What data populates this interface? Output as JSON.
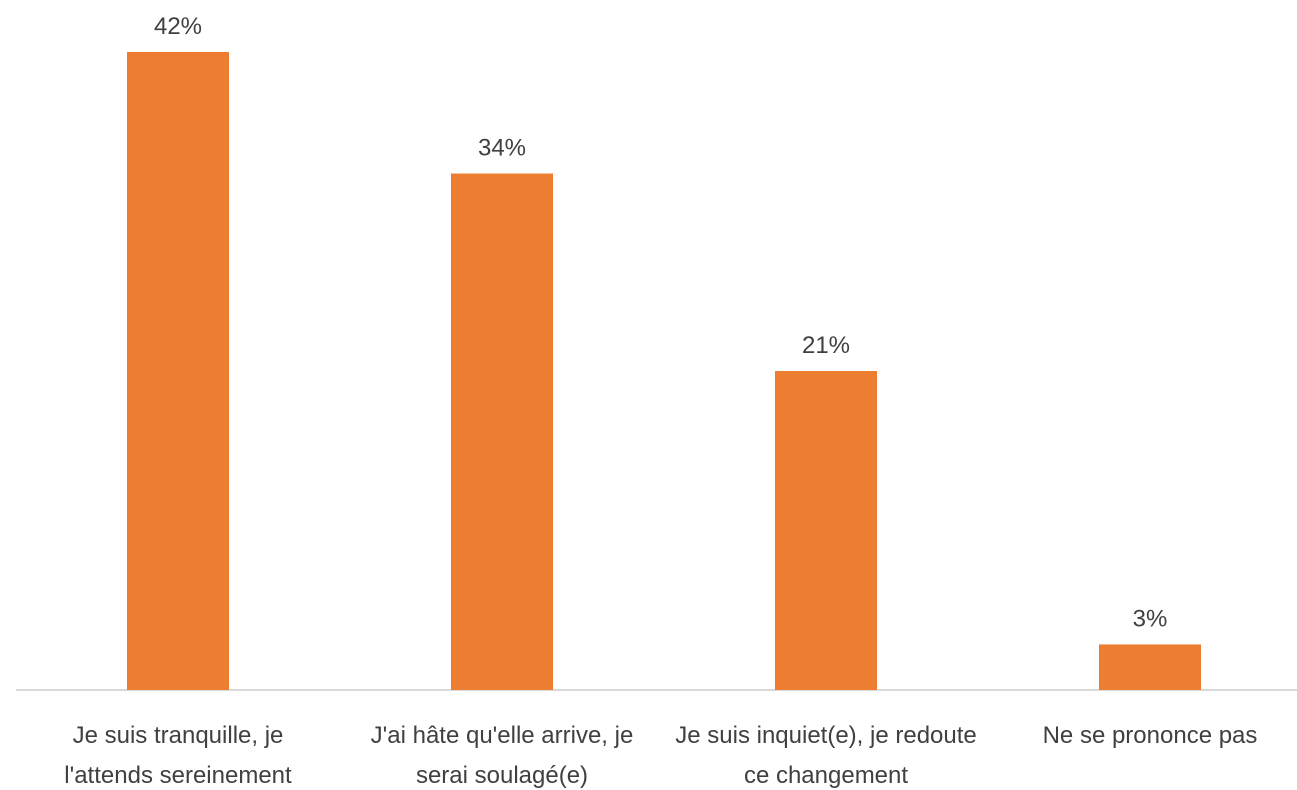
{
  "chart_data": {
    "type": "bar",
    "categories": [
      "Je suis tranquille, je l'attends sereinement",
      "J'ai hâte qu'elle arrive, je serai soulagé(e)",
      "Je suis inquiet(e), je redoute ce changement",
      "Ne se prononce pas"
    ],
    "values": [
      42,
      34,
      21,
      3
    ],
    "value_labels": [
      "42%",
      "34%",
      "21%",
      "3%"
    ],
    "color": "#ed7d31"
  }
}
